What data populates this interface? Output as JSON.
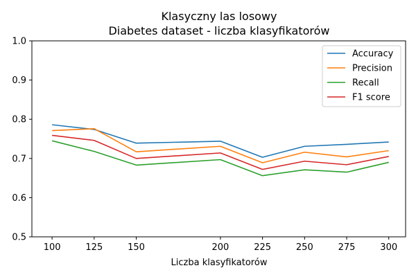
{
  "chart_data": {
    "type": "line",
    "title_line1": "Klasyczny las losowy",
    "title_line2": "Diabetes dataset - liczba klasyfikatorów",
    "xlabel": "Liczba klasyfikatorów",
    "ylabel": "",
    "x": [
      100,
      125,
      150,
      200,
      225,
      250,
      275,
      300
    ],
    "xlim": [
      88,
      310
    ],
    "ylim": [
      0.5,
      1.0
    ],
    "xticks": [
      100,
      125,
      150,
      200,
      225,
      250,
      275,
      300
    ],
    "yticks": [
      0.5,
      0.6,
      0.7,
      0.8,
      0.9,
      1.0
    ],
    "ytick_labels": [
      "0.5",
      "0.6",
      "0.7",
      "0.8",
      "0.9",
      "1.0"
    ],
    "grid": false,
    "legend_position": "top-right",
    "series": [
      {
        "name": "Accuracy",
        "color": "#1f77b4",
        "values": [
          0.786,
          0.774,
          0.739,
          0.744,
          0.703,
          0.731,
          0.736,
          0.742
        ]
      },
      {
        "name": "Precision",
        "color": "#ff7f0e",
        "values": [
          0.771,
          0.776,
          0.717,
          0.731,
          0.689,
          0.716,
          0.704,
          0.72
        ]
      },
      {
        "name": "Recall",
        "color": "#2ca02c",
        "values": [
          0.745,
          0.718,
          0.683,
          0.697,
          0.656,
          0.671,
          0.665,
          0.69
        ]
      },
      {
        "name": "F1 score",
        "color": "#d62728",
        "values": [
          0.759,
          0.746,
          0.7,
          0.714,
          0.672,
          0.693,
          0.684,
          0.705
        ]
      }
    ]
  }
}
